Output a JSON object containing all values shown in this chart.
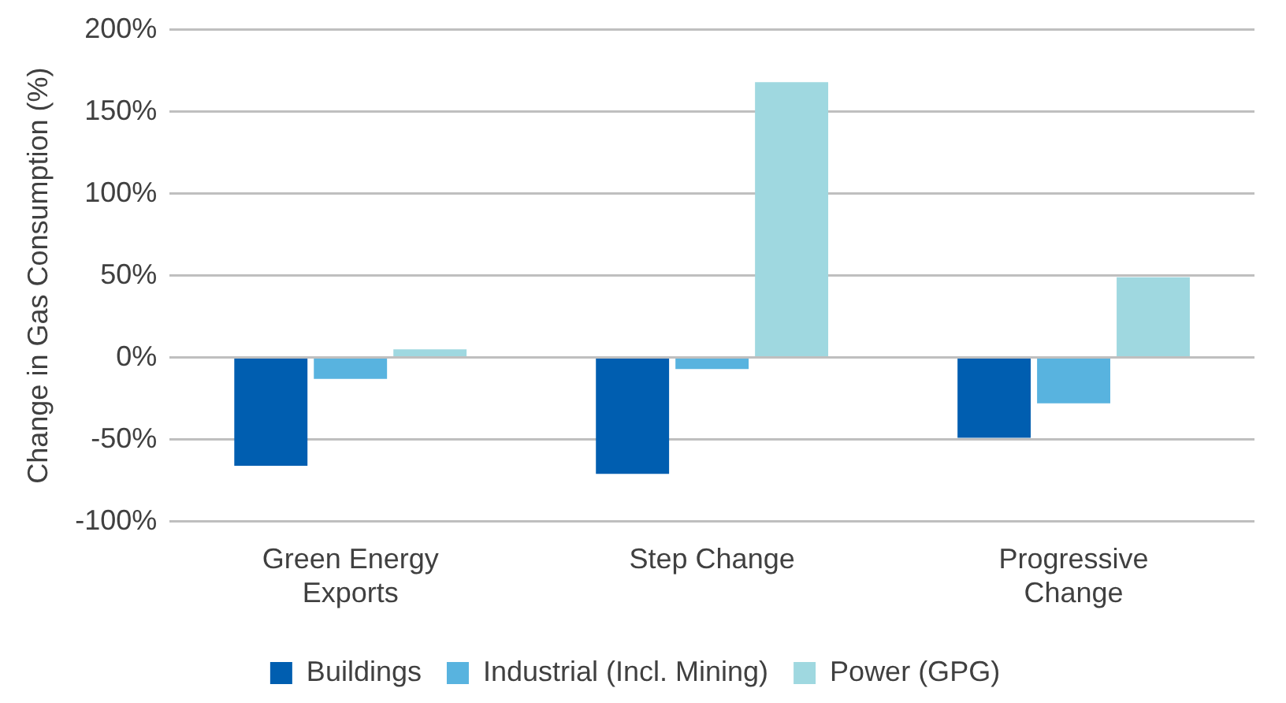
{
  "chart_data": {
    "type": "bar",
    "ylabel": "Change in Gas Consumption (%)",
    "categories": [
      [
        "Green Energy",
        "Exports"
      ],
      [
        "Step Change"
      ],
      [
        "Progressive",
        "Change"
      ]
    ],
    "series": [
      {
        "name": "Buildings",
        "color": "#005eb0",
        "values": [
          -66,
          -71,
          -49
        ]
      },
      {
        "name": "Industrial (Incl. Mining)",
        "color": "#58b3df",
        "values": [
          -13,
          -7,
          -28
        ]
      },
      {
        "name": "Power (GPG)",
        "color": "#9fd8e0",
        "values": [
          5,
          168,
          49
        ]
      }
    ],
    "ylim": [
      -100,
      200
    ],
    "yticks": [
      {
        "value": -100,
        "label": "-100%"
      },
      {
        "value": -50,
        "label": "-50%"
      },
      {
        "value": 0,
        "label": "0%"
      },
      {
        "value": 50,
        "label": "50%"
      },
      {
        "value": 100,
        "label": "100%"
      },
      {
        "value": 150,
        "label": "150%"
      },
      {
        "value": 200,
        "label": "200%"
      }
    ],
    "grid": "y",
    "legend": "bottom"
  }
}
